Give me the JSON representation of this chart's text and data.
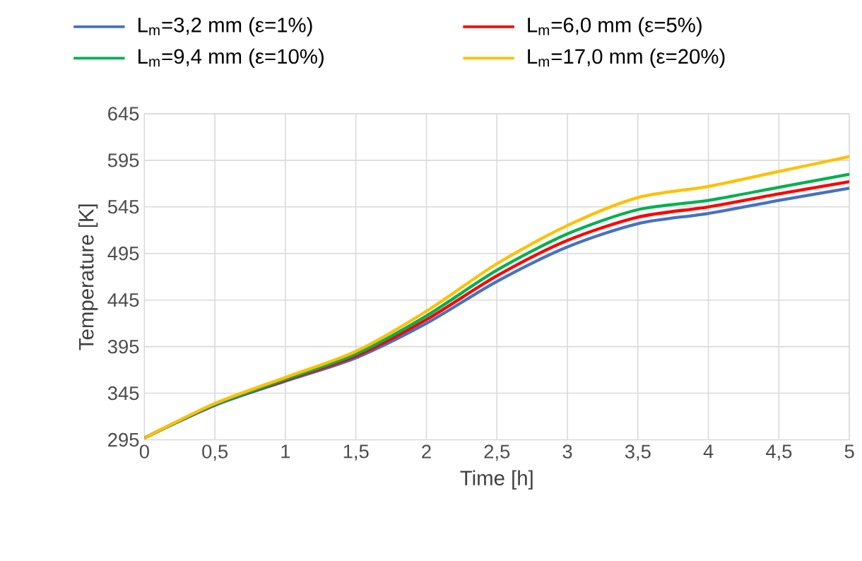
{
  "chart_data": {
    "type": "line",
    "xlabel": "Time [h]",
    "ylabel": "Temperature [K]",
    "x": [
      0,
      0.5,
      1,
      1.5,
      2,
      2.5,
      3,
      3.5,
      4,
      4.5,
      5
    ],
    "series": [
      {
        "name": "L$_{m}$=3,2 mm (ε=1%)",
        "color": "#4472c4",
        "values": [
          297,
          332,
          358,
          383,
          420,
          465,
          502,
          527,
          538,
          552,
          565
        ]
      },
      {
        "name": "L$_{m}$=6,0 mm (ε=5%)",
        "color": "#ff0000",
        "values": [
          297,
          333,
          359,
          385,
          424,
          471,
          509,
          534,
          545,
          559,
          572
        ]
      },
      {
        "name": "L$_{m}$=9,4 mm (ε=10%)",
        "color": "#00b050",
        "values": [
          297,
          333,
          360,
          387,
          428,
          477,
          516,
          542,
          552,
          566,
          580
        ]
      },
      {
        "name": "L$_{m}$=17,0 mm (ε=20%)",
        "color": "#ffc000",
        "values": [
          297,
          334,
          362,
          390,
          433,
          484,
          525,
          555,
          567,
          583,
          599
        ]
      }
    ],
    "xlim": [
      0,
      5
    ],
    "ylim": [
      295,
      645
    ],
    "xticks": [
      0,
      {
        "value": 0.5,
        "label": "0,5"
      },
      1,
      {
        "value": 1.5,
        "label": "1,5"
      },
      2,
      {
        "value": 2.5,
        "label": "2,5"
      },
      3,
      {
        "value": 3.5,
        "label": "3,5"
      },
      4,
      {
        "value": 4.5,
        "label": "4,5"
      },
      5
    ],
    "yticks": [
      295,
      345,
      395,
      445,
      495,
      545,
      595,
      645
    ],
    "grid": true,
    "legend": "top",
    "marker": "none",
    "line_style": "solid"
  }
}
